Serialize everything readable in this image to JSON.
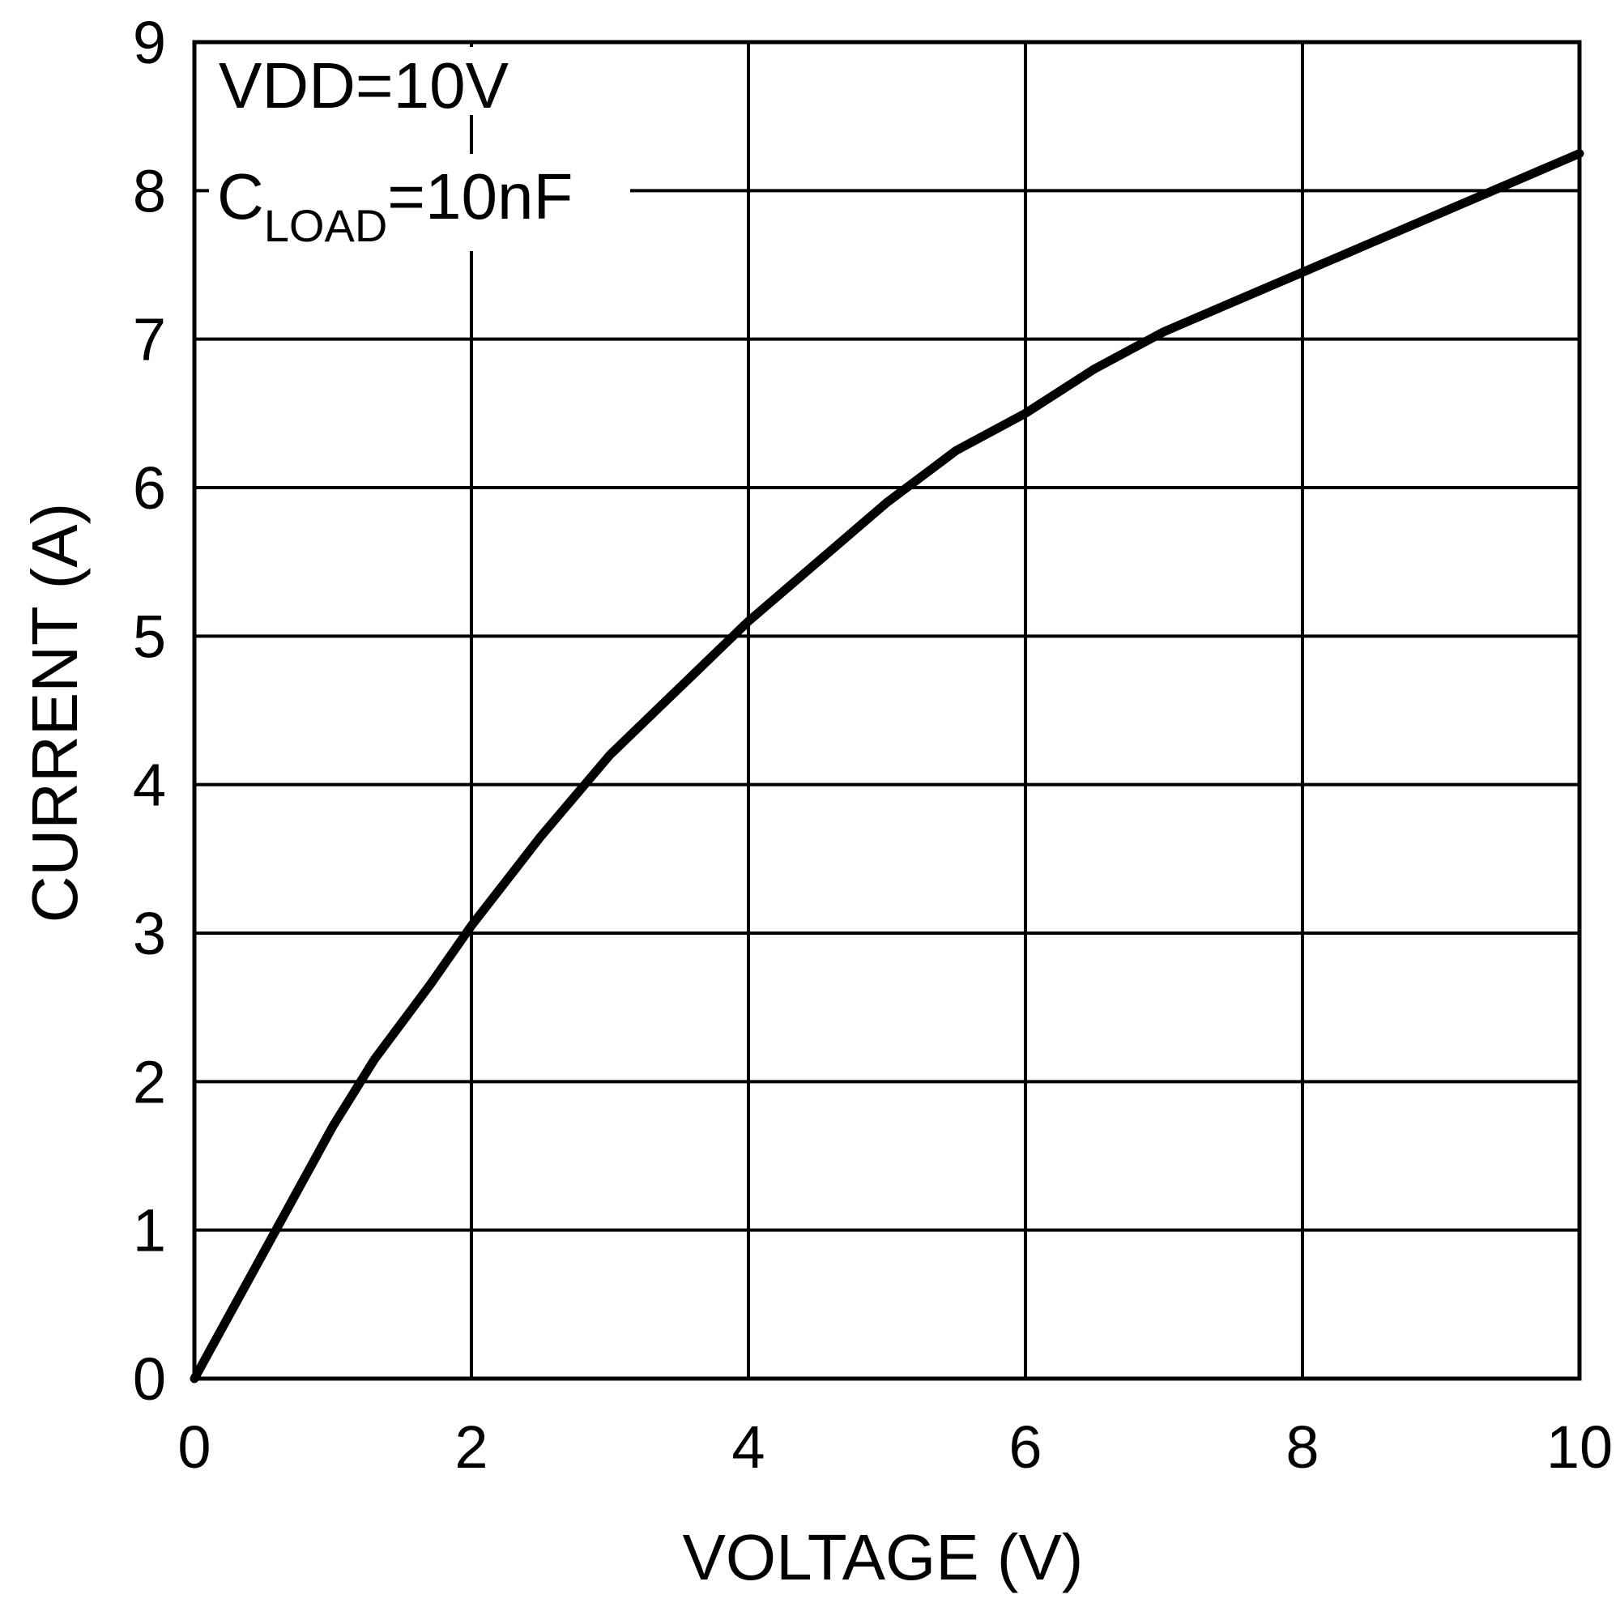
{
  "chart_data": {
    "type": "line",
    "title": "",
    "xlabel": "VOLTAGE (V)",
    "ylabel": "CURRENT (A)",
    "xlim": [
      0,
      10
    ],
    "ylim": [
      0,
      9
    ],
    "xticks": [
      "0",
      "2",
      "4",
      "6",
      "8",
      "10"
    ],
    "yticks": [
      "0",
      "1",
      "2",
      "3",
      "4",
      "5",
      "6",
      "7",
      "8",
      "9"
    ],
    "grid": true,
    "annotations": {
      "vdd": "VDD=10V",
      "cload_main": "C",
      "cload_sub": "LOAD",
      "cload_value": "=10nF"
    },
    "series": [
      {
        "color": "#000000",
        "x": [
          0,
          0.5,
          1,
          1.3,
          1.7,
          2,
          2.5,
          3,
          3.5,
          4,
          4.5,
          5,
          5.5,
          6,
          6.5,
          7,
          7.5,
          8,
          8.5,
          9,
          9.5,
          10
        ],
        "y": [
          0,
          0.85,
          1.7,
          2.15,
          2.65,
          3.05,
          3.65,
          4.2,
          4.65,
          5.1,
          5.5,
          5.9,
          6.25,
          6.5,
          6.8,
          7.05,
          7.25,
          7.45,
          7.65,
          7.85,
          8.05,
          8.25
        ]
      }
    ]
  }
}
